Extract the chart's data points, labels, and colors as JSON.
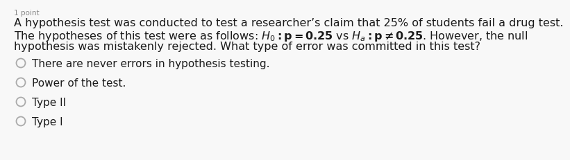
{
  "background_color": "#f8f8f8",
  "top_label": "1 point",
  "line1": "A hypothesis test was conducted to test a researcher’s claim that 25% of students fail a drug test.",
  "line2_pre": "The hypotheses of this test were as follows: ",
  "line2_post": ". However, the null",
  "line3": "hypothesis was mistakenly rejected. What type of error was committed in this test?",
  "options": [
    "There are never errors in hypothesis testing.",
    "Power of the test.",
    "Type II",
    "Type I"
  ],
  "font_size_paragraph": 11.5,
  "font_size_options": 11,
  "font_size_label": 7.5,
  "circle_color": "#aaaaaa",
  "text_color": "#1a1a1a",
  "label_color": "#888888"
}
